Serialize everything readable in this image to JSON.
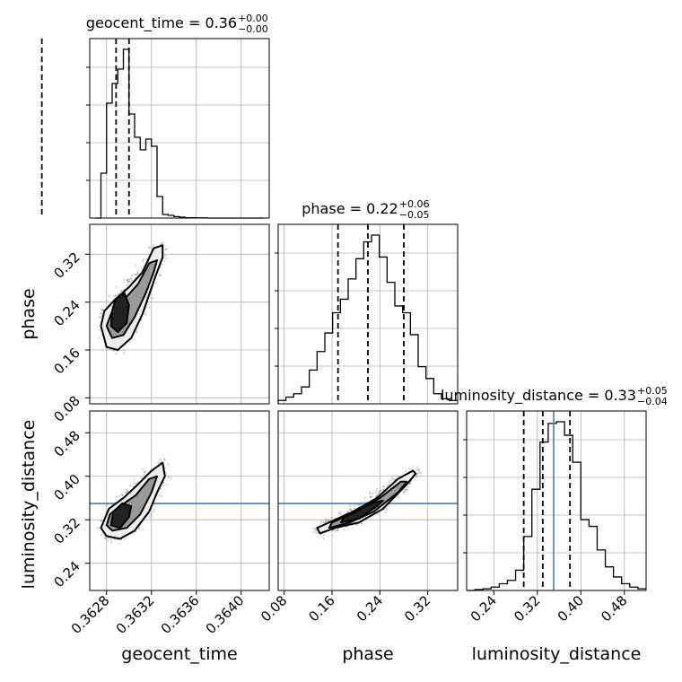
{
  "chart_data": {
    "type": "corner",
    "colors": {
      "hist": "#000000",
      "quantile": "#000000",
      "truth": "#4682b4",
      "grid": "#b0b0b0",
      "scatter": "#000000"
    },
    "parameters": [
      {
        "name": "geocent_time",
        "axis_label": "geocent_time",
        "range": [
          0.36265,
          0.36425
        ],
        "ticks": [
          0.3628,
          0.3632,
          0.3636,
          0.364
        ],
        "tick_labels": [
          "0.3628",
          "0.3632",
          "0.3636",
          "0.3640"
        ],
        "title": {
          "main": "geocent_time = 0.36",
          "sup": "+0.00",
          "sub": "−0.00"
        },
        "quantiles": [
          0.362885,
          0.363,
          0.362223
        ],
        "hist": [
          0.0,
          0.25,
          0.64,
          0.75,
          0.83,
          0.94,
          0.58,
          0.45,
          0.38,
          0.44,
          0.4,
          0.12,
          0.02,
          0.015,
          0.008,
          0.005,
          0.002,
          0.002,
          0.001,
          0.001,
          0.0,
          0.0,
          0.0,
          0.0,
          0.0,
          0.0,
          0.0,
          0.0,
          0.0,
          0.0
        ],
        "hist_bins": [
          0.3627,
          0.36275,
          0.3628,
          0.36285,
          0.3629,
          0.36295,
          0.363,
          0.36305,
          0.3631,
          0.36315,
          0.3632,
          0.36325,
          0.3633,
          0.36335,
          0.3634,
          0.36345,
          0.3635,
          0.36355,
          0.3636,
          0.36365,
          0.3637,
          0.36375,
          0.3638,
          0.36385,
          0.3639,
          0.36395,
          0.364,
          0.36405,
          0.3641,
          0.36415,
          0.3642
        ],
        "truth": null
      },
      {
        "name": "phase",
        "axis_label": "phase",
        "range": [
          0.07,
          0.37
        ],
        "ticks": [
          0.08,
          0.16,
          0.24,
          0.32
        ],
        "tick_labels": [
          "0.08",
          "0.16",
          "0.24",
          "0.32"
        ],
        "title": {
          "main": "phase = 0.22",
          "sup": "+0.06",
          "sub": "−0.05"
        },
        "quantiles": [
          0.17,
          0.22,
          0.28
        ],
        "hist": [
          0.02,
          0.04,
          0.06,
          0.1,
          0.2,
          0.31,
          0.42,
          0.54,
          0.62,
          0.74,
          0.86,
          0.96,
          1.0,
          0.87,
          0.72,
          0.58,
          0.54,
          0.41,
          0.22,
          0.15,
          0.06,
          0.03,
          0.02
        ],
        "hist_bins": [
          0.07,
          0.083,
          0.096,
          0.109,
          0.122,
          0.135,
          0.148,
          0.161,
          0.174,
          0.187,
          0.2,
          0.213,
          0.226,
          0.239,
          0.252,
          0.265,
          0.278,
          0.291,
          0.304,
          0.317,
          0.33,
          0.343,
          0.356,
          0.369
        ],
        "truth": null
      },
      {
        "name": "luminosity_distance",
        "axis_label": "luminosity_distance",
        "range": [
          0.19,
          0.52
        ],
        "ticks": [
          0.24,
          0.32,
          0.4,
          0.48
        ],
        "tick_labels": [
          "0.24",
          "0.32",
          "0.40",
          "0.48"
        ],
        "title": {
          "main": "luminosity_distance = 0.33",
          "sup": "+0.05",
          "sub": "−0.04"
        },
        "quantiles": [
          0.295,
          0.33,
          0.38
        ],
        "hist": [
          0.0,
          0.005,
          0.01,
          0.02,
          0.04,
          0.06,
          0.12,
          0.32,
          0.6,
          0.88,
          0.99,
          1.0,
          0.92,
          0.76,
          0.42,
          0.38,
          0.24,
          0.14,
          0.08,
          0.04,
          0.02,
          0.01
        ],
        "hist_bins": [
          0.19,
          0.205,
          0.22,
          0.235,
          0.25,
          0.265,
          0.28,
          0.295,
          0.31,
          0.325,
          0.34,
          0.355,
          0.37,
          0.385,
          0.4,
          0.415,
          0.43,
          0.445,
          0.46,
          0.475,
          0.49,
          0.505,
          0.52
        ],
        "truth": 0.35
      }
    ],
    "contours": {
      "phase|geocent_time": [
        {
          "level": "outer",
          "points": [
            [
              0.36275,
              0.2
            ],
            [
              0.3628,
              0.165
            ],
            [
              0.3629,
              0.16
            ],
            [
              0.36302,
              0.18
            ],
            [
              0.36312,
              0.22
            ],
            [
              0.36323,
              0.28
            ],
            [
              0.3633,
              0.315
            ],
            [
              0.3633,
              0.335
            ],
            [
              0.36322,
              0.33
            ],
            [
              0.36312,
              0.29
            ],
            [
              0.363,
              0.265
            ],
            [
              0.36288,
              0.245
            ],
            [
              0.36278,
              0.225
            ]
          ]
        },
        {
          "level": "middle",
          "points": [
            [
              0.3628,
              0.2
            ],
            [
              0.36285,
              0.18
            ],
            [
              0.36295,
              0.185
            ],
            [
              0.36305,
              0.215
            ],
            [
              0.36315,
              0.255
            ],
            [
              0.36322,
              0.29
            ],
            [
              0.36325,
              0.31
            ],
            [
              0.36318,
              0.305
            ],
            [
              0.36308,
              0.27
            ],
            [
              0.36296,
              0.245
            ],
            [
              0.36285,
              0.225
            ]
          ]
        },
        {
          "level": "inner",
          "points": [
            [
              0.36284,
              0.2
            ],
            [
              0.3629,
              0.19
            ],
            [
              0.36298,
              0.205
            ],
            [
              0.363,
              0.235
            ],
            [
              0.36296,
              0.255
            ],
            [
              0.36288,
              0.245
            ],
            [
              0.36285,
              0.225
            ]
          ]
        }
      ],
      "luminosity_distance|geocent_time": [
        {
          "level": "outer",
          "points": [
            [
              0.36275,
              0.305
            ],
            [
              0.3628,
              0.29
            ],
            [
              0.36292,
              0.285
            ],
            [
              0.36305,
              0.3
            ],
            [
              0.36318,
              0.335
            ],
            [
              0.36325,
              0.37
            ],
            [
              0.36332,
              0.4
            ],
            [
              0.3633,
              0.425
            ],
            [
              0.3632,
              0.41
            ],
            [
              0.36308,
              0.385
            ],
            [
              0.36295,
              0.36
            ],
            [
              0.36282,
              0.34
            ]
          ]
        },
        {
          "level": "middle",
          "points": [
            [
              0.3628,
              0.31
            ],
            [
              0.36285,
              0.3
            ],
            [
              0.36298,
              0.305
            ],
            [
              0.3631,
              0.33
            ],
            [
              0.3632,
              0.37
            ],
            [
              0.36325,
              0.4
            ],
            [
              0.36318,
              0.395
            ],
            [
              0.36306,
              0.365
            ],
            [
              0.36292,
              0.345
            ],
            [
              0.36283,
              0.33
            ]
          ]
        },
        {
          "level": "inner",
          "points": [
            [
              0.36284,
              0.31
            ],
            [
              0.36292,
              0.305
            ],
            [
              0.363,
              0.325
            ],
            [
              0.36302,
              0.345
            ],
            [
              0.36294,
              0.35
            ],
            [
              0.36286,
              0.335
            ]
          ]
        }
      ],
      "luminosity_distance|phase": [
        {
          "level": "outer",
          "points": [
            [
              0.14,
              0.295
            ],
            [
              0.165,
              0.305
            ],
            [
              0.205,
              0.315
            ],
            [
              0.245,
              0.34
            ],
            [
              0.285,
              0.385
            ],
            [
              0.3,
              0.405
            ],
            [
              0.295,
              0.41
            ],
            [
              0.27,
              0.395
            ],
            [
              0.235,
              0.36
            ],
            [
              0.195,
              0.335
            ],
            [
              0.155,
              0.315
            ],
            [
              0.135,
              0.305
            ]
          ]
        },
        {
          "level": "middle",
          "points": [
            [
              0.155,
              0.305
            ],
            [
              0.19,
              0.315
            ],
            [
              0.23,
              0.335
            ],
            [
              0.27,
              0.37
            ],
            [
              0.285,
              0.39
            ],
            [
              0.275,
              0.39
            ],
            [
              0.24,
              0.36
            ],
            [
              0.2,
              0.335
            ],
            [
              0.16,
              0.315
            ]
          ]
        },
        {
          "level": "inner",
          "points": [
            [
              0.175,
              0.315
            ],
            [
              0.205,
              0.322
            ],
            [
              0.235,
              0.345
            ],
            [
              0.245,
              0.355
            ],
            [
              0.23,
              0.352
            ],
            [
              0.2,
              0.335
            ],
            [
              0.18,
              0.325
            ]
          ]
        }
      ]
    }
  }
}
